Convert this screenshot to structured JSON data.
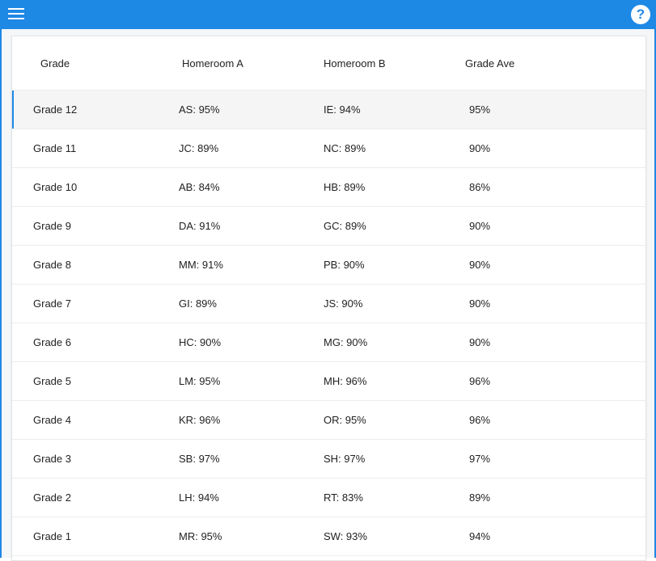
{
  "toolbar": {
    "menu_icon": "hamburger-menu-icon",
    "help_icon": "help-icon",
    "help_glyph": "?",
    "accent_color": "#1e88e5"
  },
  "table": {
    "headers": [
      "Grade",
      "Homeroom A",
      "Homeroom B",
      "Grade Ave"
    ],
    "rows": [
      {
        "grade": "Grade 12",
        "a": "AS: 95%",
        "b": "IE: 94%",
        "ave": "95%"
      },
      {
        "grade": "Grade 11",
        "a": "JC: 89%",
        "b": "NC: 89%",
        "ave": "90%"
      },
      {
        "grade": "Grade 10",
        "a": "AB: 84%",
        "b": "HB: 89%",
        "ave": "86%"
      },
      {
        "grade": "Grade 9",
        "a": "DA: 91%",
        "b": "GC: 89%",
        "ave": "90%"
      },
      {
        "grade": "Grade 8",
        "a": "MM: 91%",
        "b": "PB: 90%",
        "ave": "90%"
      },
      {
        "grade": "Grade 7",
        "a": "GI: 89%",
        "b": "JS: 90%",
        "ave": "90%"
      },
      {
        "grade": "Grade 6",
        "a": "HC: 90%",
        "b": "MG: 90%",
        "ave": "90%"
      },
      {
        "grade": "Grade 5",
        "a": "LM: 95%",
        "b": "MH: 96%",
        "ave": "96%"
      },
      {
        "grade": "Grade 4",
        "a": "KR: 96%",
        "b": "OR: 95%",
        "ave": "96%"
      },
      {
        "grade": "Grade 3",
        "a": "SB: 97%",
        "b": "SH: 97%",
        "ave": "97%"
      },
      {
        "grade": "Grade 2",
        "a": "LH: 94%",
        "b": "RT: 83%",
        "ave": "89%"
      },
      {
        "grade": "Grade 1",
        "a": "MR: 95%",
        "b": "SW: 93%",
        "ave": "94%"
      }
    ]
  }
}
